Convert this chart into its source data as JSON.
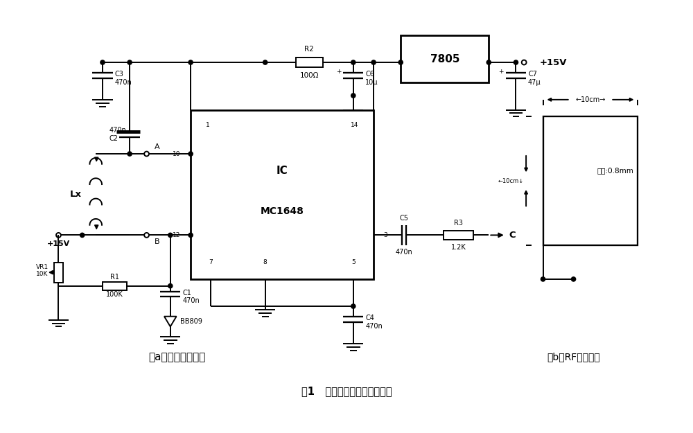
{
  "title": "图1   简单电感测量装置电路图",
  "subtitle_a": "（a）电感测量电路",
  "subtitle_b": "（b）RF标准线圈",
  "linxian": "线径:0.8mm",
  "bg_color": "#ffffff",
  "lc": "#000000",
  "lw": 1.4,
  "fs": 7.5
}
